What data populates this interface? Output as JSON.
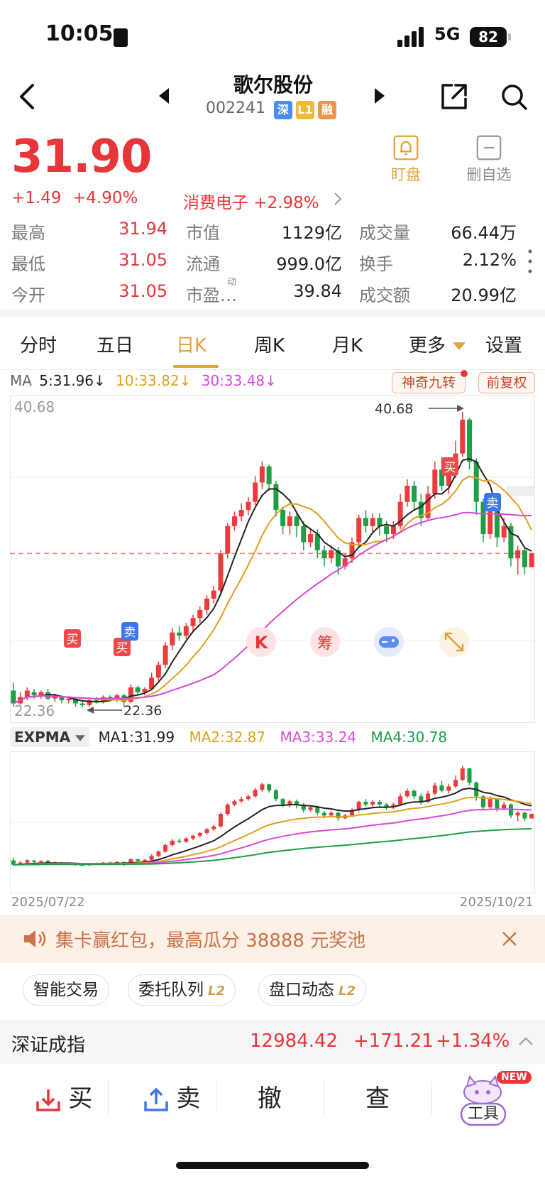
{
  "status_bar": {
    "time": "10:05",
    "network": "5G",
    "battery": "82"
  },
  "header": {
    "stock_name": "歌尔股份",
    "stock_code": "002241",
    "tags": [
      {
        "label": "深",
        "color": "#4a8cf0"
      },
      {
        "label": "L1",
        "color": "#f0b93a"
      },
      {
        "label": "融",
        "color": "#f0934a"
      }
    ]
  },
  "quote": {
    "price": "31.90",
    "change": "+1.49",
    "change_pct": "+4.90%",
    "sector": "消费电子 +2.98%",
    "watch_label": "盯盘",
    "remove_label": "删自选",
    "stats": [
      {
        "label": "最高",
        "value": "31.94"
      },
      {
        "label": "市值",
        "value": "1129亿"
      },
      {
        "label": "成交量",
        "value": "66.44万"
      },
      {
        "label": "最低",
        "value": "31.05"
      },
      {
        "label": "流通",
        "value": "999.0亿"
      },
      {
        "label": "换手",
        "value": "2.12%"
      },
      {
        "label": "今开",
        "value": "31.05"
      },
      {
        "label": "市盈",
        "value": "39.84"
      },
      {
        "label": "成交额",
        "value": "20.99亿"
      }
    ],
    "pe_super": "动",
    "pe_ellipsis": "…"
  },
  "tabs": [
    "分时",
    "五日",
    "日K",
    "周K",
    "月K",
    "更多",
    "设置"
  ],
  "active_tab": "日K",
  "ma_legend": {
    "prefix": "MA",
    "ma5": "5:31.96↓",
    "ma10": "10:33.82↓",
    "ma30": "30:33.48↓",
    "colors": {
      "ma5": "#222222",
      "ma10": "#e0a020",
      "ma30": "#d94ad9"
    }
  },
  "chart_buttons": {
    "nine": "神奇九转",
    "adjust": "前复权"
  },
  "chart_labels": {
    "top_value": "40.68",
    "high_marker": "40.68",
    "low_left": "22.36",
    "low_marker": "22.36",
    "buy": "买",
    "sell": "卖"
  },
  "floating_buttons": {
    "k": "K",
    "chip": "筹"
  },
  "expma_legend": {
    "name": "EXPMA",
    "ma1": "MA1:31.99",
    "ma2": "MA2:32.87",
    "ma3": "MA3:33.24",
    "ma4": "MA4:30.78",
    "colors": {
      "ma1": "#222222",
      "ma2": "#e0a020",
      "ma3": "#d94ad9",
      "ma4": "#1f9e46"
    }
  },
  "dates": {
    "start": "2025/07/22",
    "end": "2025/10/21"
  },
  "banner": {
    "text": "集卡赢红包，最高瓜分 38888 元奖池"
  },
  "chips": [
    {
      "label": "智能交易",
      "l2": ""
    },
    {
      "label": "委托队列",
      "l2": "L2"
    },
    {
      "label": "盘口动态",
      "l2": "L2"
    }
  ],
  "index": {
    "name": "深证成指",
    "value": "12984.42",
    "change": "+171.21",
    "change_pct": "+1.34%"
  },
  "bottom": {
    "buy": "买",
    "sell": "卖",
    "cancel": "撤",
    "query": "查",
    "tools": "工具",
    "new_badge": "NEW"
  },
  "chart_data": {
    "type": "candlestick",
    "x_range": [
      "2025/07/22",
      "2025/10/21"
    ],
    "y_max_label": 40.68,
    "y_min_label": 22.36,
    "candles": [
      [
        23.4,
        22.6,
        23.9,
        22.4
      ],
      [
        22.6,
        23.0,
        23.3,
        22.5
      ],
      [
        23.0,
        23.4,
        23.6,
        22.8
      ],
      [
        23.3,
        23.1,
        23.5,
        22.9
      ],
      [
        23.1,
        23.3,
        23.4,
        22.9
      ],
      [
        23.3,
        22.9,
        23.5,
        22.8
      ],
      [
        22.9,
        23.0,
        23.2,
        22.7
      ],
      [
        23.0,
        22.8,
        23.1,
        22.6
      ],
      [
        22.8,
        22.9,
        23.0,
        22.6
      ],
      [
        22.9,
        22.6,
        23.0,
        22.4
      ],
      [
        22.6,
        22.5,
        22.8,
        22.36
      ],
      [
        22.5,
        22.8,
        22.9,
        22.4
      ],
      [
        22.8,
        22.7,
        23.0,
        22.6
      ],
      [
        22.7,
        23.0,
        23.1,
        22.6
      ],
      [
        23.0,
        22.9,
        23.1,
        22.8
      ],
      [
        22.9,
        23.1,
        23.2,
        22.7
      ],
      [
        23.1,
        22.7,
        23.2,
        22.4
      ],
      [
        22.7,
        23.6,
        23.8,
        22.6
      ],
      [
        23.6,
        23.3,
        23.7,
        23.1
      ],
      [
        23.3,
        23.5,
        23.6,
        23.1
      ],
      [
        23.5,
        24.2,
        24.5,
        23.4
      ],
      [
        24.2,
        25.0,
        25.2,
        24.0
      ],
      [
        25.0,
        26.2,
        26.4,
        24.8
      ],
      [
        26.2,
        27.0,
        27.3,
        25.9
      ],
      [
        27.0,
        26.8,
        27.4,
        26.5
      ],
      [
        26.8,
        27.4,
        27.6,
        26.6
      ],
      [
        27.4,
        27.9,
        28.1,
        27.1
      ],
      [
        27.9,
        28.4,
        28.6,
        27.6
      ],
      [
        28.4,
        29.1,
        29.3,
        28.1
      ],
      [
        29.1,
        29.6,
        29.9,
        28.8
      ],
      [
        29.6,
        31.9,
        32.1,
        29.4
      ],
      [
        31.9,
        33.6,
        33.8,
        31.6
      ],
      [
        33.6,
        34.2,
        34.5,
        33.3
      ],
      [
        34.2,
        34.6,
        35.0,
        33.9
      ],
      [
        34.6,
        35.1,
        35.4,
        34.3
      ],
      [
        35.1,
        36.3,
        36.7,
        34.9
      ],
      [
        36.3,
        37.3,
        37.6,
        35.9
      ],
      [
        37.3,
        36.2,
        37.4,
        35.8
      ],
      [
        36.2,
        34.6,
        36.4,
        34.2
      ],
      [
        34.6,
        33.6,
        34.8,
        33.1
      ],
      [
        33.6,
        34.2,
        34.5,
        33.1
      ],
      [
        34.2,
        33.6,
        34.5,
        32.9
      ],
      [
        33.6,
        32.6,
        33.9,
        32.1
      ],
      [
        32.6,
        33.1,
        33.4,
        32.3
      ],
      [
        33.1,
        32.1,
        33.4,
        31.6
      ],
      [
        32.1,
        31.6,
        32.4,
        31.1
      ],
      [
        31.6,
        32.1,
        32.4,
        31.3
      ],
      [
        32.1,
        31.1,
        32.3,
        30.6
      ],
      [
        31.1,
        31.6,
        31.9,
        30.9
      ],
      [
        31.6,
        32.6,
        32.9,
        31.3
      ],
      [
        32.6,
        34.1,
        34.3,
        32.3
      ],
      [
        34.1,
        33.6,
        34.6,
        33.2
      ],
      [
        33.6,
        34.1,
        34.4,
        33.2
      ],
      [
        34.1,
        33.6,
        34.4,
        33.0
      ],
      [
        33.6,
        33.1,
        33.9,
        32.6
      ],
      [
        33.1,
        33.6,
        33.9,
        32.8
      ],
      [
        33.6,
        35.1,
        35.6,
        33.4
      ],
      [
        35.1,
        36.1,
        36.5,
        34.8
      ],
      [
        36.1,
        35.1,
        36.4,
        34.6
      ],
      [
        35.1,
        34.1,
        35.6,
        33.6
      ],
      [
        34.1,
        35.6,
        36.1,
        33.9
      ],
      [
        35.6,
        37.1,
        37.6,
        35.3
      ],
      [
        37.1,
        36.1,
        37.9,
        35.8
      ],
      [
        36.1,
        36.9,
        37.4,
        35.6
      ],
      [
        36.9,
        38.1,
        38.9,
        36.6
      ],
      [
        38.1,
        40.2,
        40.68,
        37.9
      ],
      [
        40.2,
        37.6,
        40.3,
        37.1
      ],
      [
        37.6,
        35.1,
        37.8,
        34.3
      ],
      [
        35.1,
        33.1,
        35.3,
        32.6
      ],
      [
        33.1,
        34.6,
        35.1,
        32.8
      ],
      [
        34.6,
        32.9,
        34.8,
        32.3
      ],
      [
        32.9,
        33.6,
        34.1,
        32.6
      ],
      [
        33.6,
        31.6,
        33.8,
        31.1
      ],
      [
        31.6,
        32.1,
        32.4,
        30.6
      ],
      [
        32.1,
        31.05,
        32.3,
        30.6
      ],
      [
        31.05,
        31.9,
        31.94,
        31.05
      ]
    ]
  }
}
